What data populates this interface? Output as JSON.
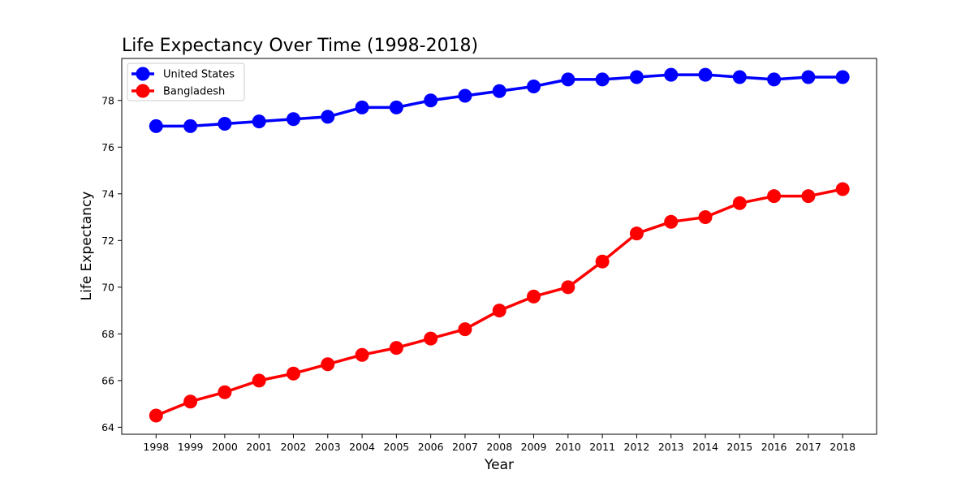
{
  "chart_data": {
    "type": "line",
    "title": "Life Expectancy Over Time (1998-2018)",
    "xlabel": "Year",
    "ylabel": "Life Expectancy",
    "x": [
      "1998",
      "1999",
      "2000",
      "2001",
      "2002",
      "2003",
      "2004",
      "2005",
      "2006",
      "2007",
      "2008",
      "2009",
      "2010",
      "2011",
      "2012",
      "2013",
      "2014",
      "2015",
      "2016",
      "2017",
      "2018"
    ],
    "ylim": [
      63.7,
      79.8
    ],
    "yticks": [
      64,
      66,
      68,
      70,
      72,
      74,
      76,
      78
    ],
    "grid": false,
    "legend_position": "top-left",
    "series": [
      {
        "name": "United States",
        "color": "#0000ff",
        "values": [
          76.9,
          76.9,
          77.0,
          77.1,
          77.2,
          77.3,
          77.7,
          77.7,
          78.0,
          78.2,
          78.4,
          78.6,
          78.9,
          78.9,
          79.0,
          79.1,
          79.1,
          79.0,
          78.9,
          79.0,
          79.0
        ]
      },
      {
        "name": "Bangladesh",
        "color": "#ff0000",
        "values": [
          64.5,
          65.1,
          65.5,
          66.0,
          66.3,
          66.7,
          67.1,
          67.4,
          67.8,
          68.2,
          69.0,
          69.6,
          70.0,
          71.1,
          72.3,
          72.8,
          73.0,
          73.6,
          73.9,
          73.9,
          74.2
        ]
      }
    ]
  }
}
